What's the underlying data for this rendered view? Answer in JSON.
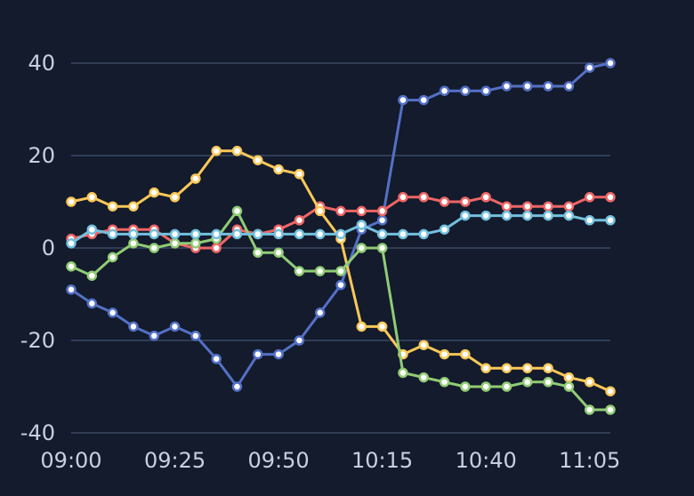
{
  "chart_data": {
    "type": "line",
    "title": "",
    "xlabel": "",
    "ylabel": "",
    "x_tick_labels": [
      "09:00",
      "09:25",
      "09:50",
      "10:15",
      "10:40",
      "11:05"
    ],
    "y_ticks": [
      40,
      20,
      0,
      -20,
      -40
    ],
    "ylim": [
      -40,
      40
    ],
    "grid": true,
    "x": [
      "09:00",
      "09:05",
      "09:10",
      "09:15",
      "09:20",
      "09:25",
      "09:30",
      "09:35",
      "09:40",
      "09:45",
      "09:50",
      "09:55",
      "10:00",
      "10:05",
      "10:10",
      "10:15",
      "10:20",
      "10:25",
      "10:30",
      "10:35",
      "10:40",
      "10:45",
      "10:50",
      "10:55",
      "11:00",
      "11:05",
      "11:10"
    ],
    "series": [
      {
        "color": "#5470c6",
        "values": [
          -9,
          -12,
          -14,
          -17,
          -19,
          -17,
          -19,
          -24,
          -30,
          -23,
          -23,
          -20,
          -14,
          -8,
          4,
          6,
          32,
          32,
          34,
          34,
          34,
          35,
          35,
          35,
          35,
          39,
          40
        ]
      },
      {
        "color": "#ee6666",
        "values": [
          2,
          3,
          4,
          4,
          4,
          1,
          0,
          0,
          4,
          3,
          4,
          6,
          9,
          8,
          8,
          8,
          11,
          11,
          10,
          10,
          11,
          9,
          9,
          9,
          9,
          11,
          11
        ]
      },
      {
        "color": "#fac858",
        "values": [
          10,
          11,
          9,
          9,
          12,
          11,
          15,
          21,
          21,
          19,
          17,
          16,
          8,
          2,
          -17,
          -17,
          -23,
          -21,
          -23,
          -23,
          -26,
          -26,
          -26,
          -26,
          -28,
          -29,
          -31
        ]
      },
      {
        "color": "#91cc75",
        "values": [
          -4,
          -6,
          -2,
          1,
          0,
          1,
          1,
          2,
          8,
          -1,
          -1,
          -5,
          -5,
          -5,
          0,
          0,
          -27,
          -28,
          -29,
          -30,
          -30,
          -30,
          -29,
          -29,
          -30,
          -35,
          -35
        ]
      },
      {
        "color": "#73c0de",
        "values": [
          1,
          4,
          3,
          3,
          3,
          3,
          3,
          3,
          3,
          3,
          3,
          3,
          3,
          3,
          5,
          3,
          3,
          3,
          4,
          7,
          7,
          7,
          7,
          7,
          7,
          6,
          6
        ]
      }
    ]
  }
}
